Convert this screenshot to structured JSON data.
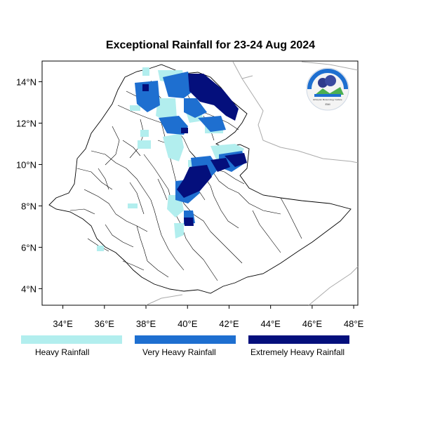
{
  "map": {
    "title": "Exceptional Rainfall for 23-24 Aug 2024",
    "x_ticks": [
      "34°E",
      "36°E",
      "38°E",
      "40°E",
      "42°E",
      "44°E",
      "46°E",
      "48°E"
    ],
    "y_ticks": [
      "14°N",
      "12°N",
      "10°N",
      "8°N",
      "6°N",
      "4°N"
    ],
    "lon_range": [
      33,
      48.2
    ],
    "lat_range": [
      3.2,
      15
    ]
  },
  "legend": {
    "items": [
      {
        "label": "Heavy Rainfall",
        "color": "#b2eeee"
      },
      {
        "label": "Very Heavy Rainfall",
        "color": "#1e6fd0"
      },
      {
        "label": "Extremely Heavy Rainfall",
        "color": "#040f7c"
      }
    ]
  },
  "logo": {
    "org_name": "Ethiopian Meteorology Institute",
    "tagline": "EMI"
  }
}
